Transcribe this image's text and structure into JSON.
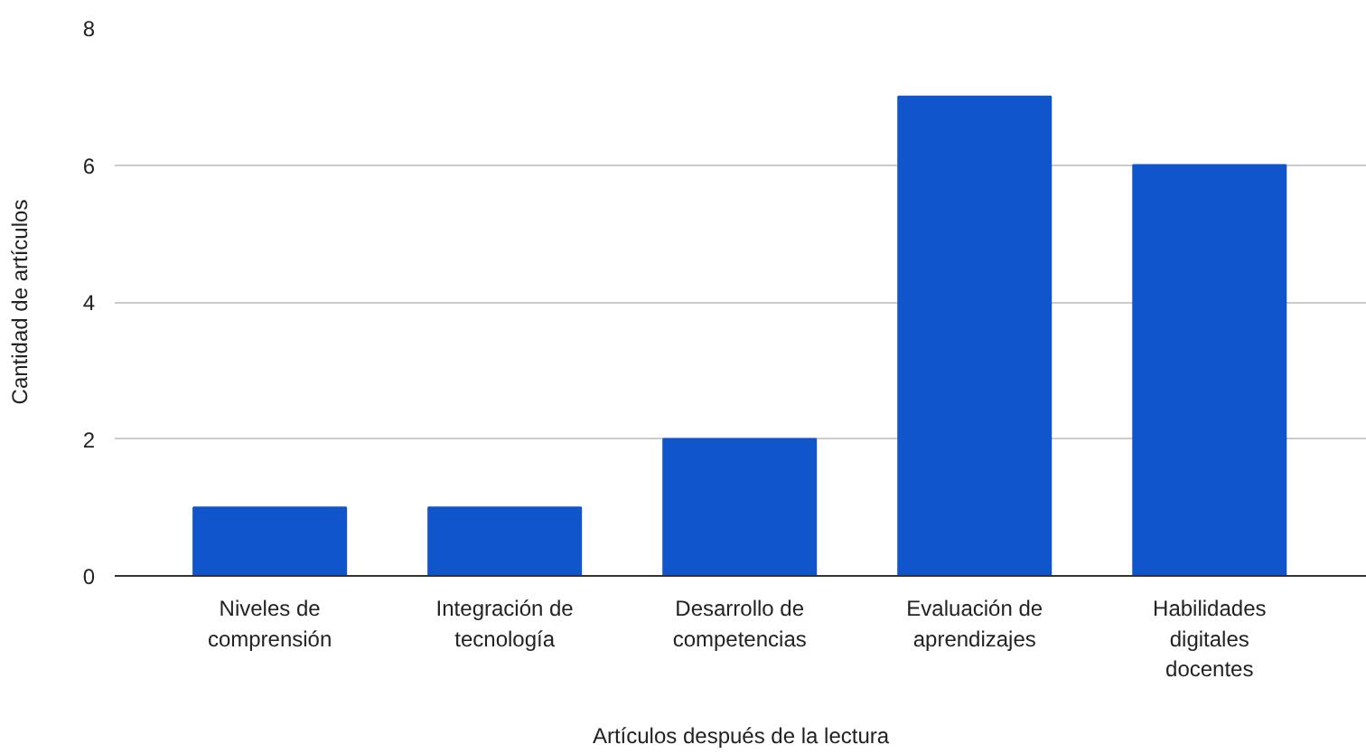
{
  "chart_data": {
    "type": "bar",
    "xlabel": "Artículos después de la lectura",
    "ylabel": "Cantidad de artículos",
    "categories": [
      "Niveles de comprensión",
      "Integración de tecnología",
      "Desarrollo de competencias",
      "Evaluación de aprendizajes",
      "Habilidades digitales docentes"
    ],
    "values": [
      1,
      1,
      2,
      7,
      6
    ],
    "color": "#1155cc",
    "ylim": [
      0,
      8
    ],
    "yticks": [
      0,
      2,
      4,
      6,
      8
    ],
    "grid": "y"
  }
}
